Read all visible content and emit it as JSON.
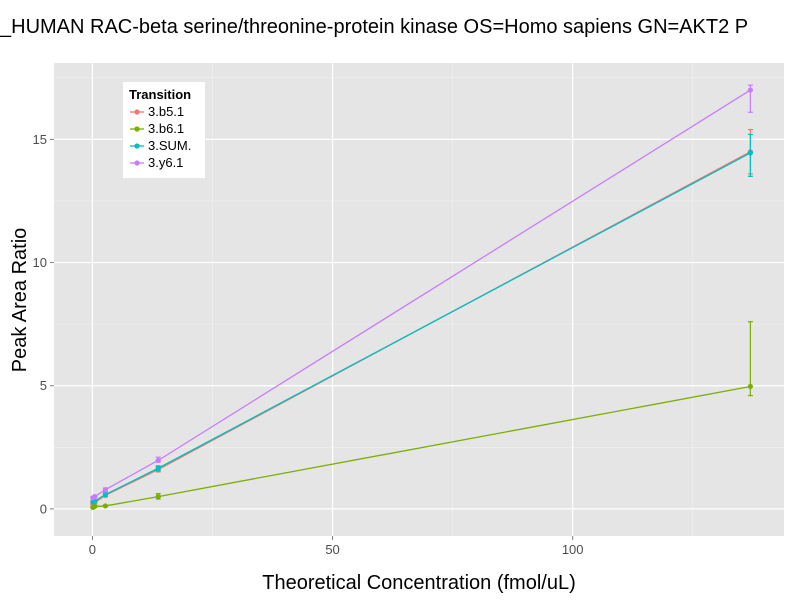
{
  "chart_data": {
    "type": "line",
    "title": "_HUMAN RAC-beta serine/threonine-protein kinase OS=Homo sapiens GN=AKT2 P",
    "xlabel": "Theoretical Concentration (fmol/uL)",
    "ylabel": "Peak Area Ratio",
    "xlim": [
      -8,
      144
    ],
    "ylim": [
      -1.1,
      18.1
    ],
    "xticks": [
      0,
      50,
      100
    ],
    "yticks": [
      0,
      5,
      10,
      15
    ],
    "grid": true,
    "legend": {
      "title": "Transition",
      "position": "top-left"
    },
    "x": [
      0.1,
      0.5,
      2.7,
      13.7,
      137
    ],
    "series": [
      {
        "name": "3.b5.1",
        "color": "#F8766D",
        "values": [
          0.18,
          0.25,
          0.55,
          1.6,
          14.5
        ],
        "error": [
          [
            0.1,
            0.25
          ],
          [
            0.2,
            0.3
          ],
          [
            0.5,
            0.6
          ],
          [
            1.5,
            1.7
          ],
          [
            13.6,
            15.4
          ]
        ]
      },
      {
        "name": "3.b6.1",
        "color": "#7CAE00",
        "values": [
          0.06,
          0.1,
          0.12,
          0.5,
          4.97
        ],
        "error": [
          [
            0.04,
            0.08
          ],
          [
            0.08,
            0.12
          ],
          [
            0.1,
            0.15
          ],
          [
            0.4,
            0.62
          ],
          [
            4.6,
            7.6
          ]
        ]
      },
      {
        "name": "3.SUM.",
        "color": "#00BFC4",
        "values": [
          0.28,
          0.32,
          0.58,
          1.65,
          14.45
        ],
        "error": [
          [
            0.25,
            0.32
          ],
          [
            0.3,
            0.35
          ],
          [
            0.5,
            0.65
          ],
          [
            1.55,
            1.75
          ],
          [
            13.5,
            15.2
          ]
        ]
      },
      {
        "name": "3.y6.1",
        "color": "#C77CFF",
        "values": [
          0.45,
          0.5,
          0.78,
          1.97,
          17.0
        ],
        "error": [
          [
            0.4,
            0.5
          ],
          [
            0.45,
            0.55
          ],
          [
            0.7,
            0.85
          ],
          [
            1.9,
            2.1
          ],
          [
            16.1,
            17.2
          ]
        ]
      }
    ]
  }
}
